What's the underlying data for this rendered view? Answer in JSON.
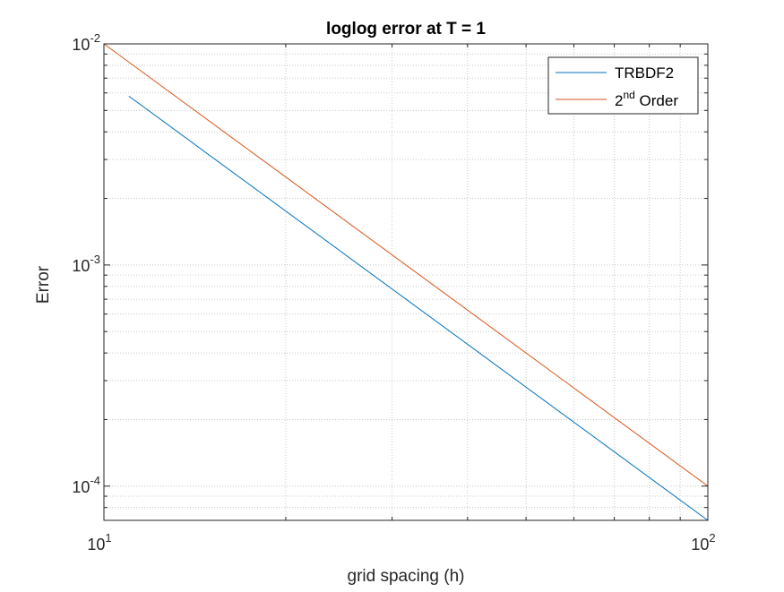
{
  "chart_data": {
    "type": "line",
    "title": "loglog error at T = 1",
    "xlabel": "grid spacing (h)",
    "ylabel": "Error",
    "xscale": "log",
    "yscale": "log",
    "xlim": [
      10,
      100
    ],
    "ylim": [
      7e-05,
      0.01
    ],
    "grid": "major and minor, dotted",
    "legend_position": "top-right",
    "x_ticks": [
      {
        "value": 10,
        "base": "10",
        "exp": "1"
      },
      {
        "value": 100,
        "base": "10",
        "exp": "2"
      }
    ],
    "y_ticks": [
      {
        "value": 0.01,
        "base": "10",
        "exp": "-2"
      },
      {
        "value": 0.001,
        "base": "10",
        "exp": "-3"
      },
      {
        "value": 0.0001,
        "base": "10",
        "exp": "-4"
      }
    ],
    "series": [
      {
        "name": "TRBDF2",
        "color": "#0072BD",
        "x": [
          11,
          100
        ],
        "y": [
          0.0058,
          7e-05
        ]
      },
      {
        "name": "2nd Order",
        "label_parts": [
          "2",
          "nd",
          " Order"
        ],
        "color": "#D95319",
        "x": [
          10,
          100
        ],
        "y": [
          0.01,
          0.0001
        ]
      }
    ]
  }
}
